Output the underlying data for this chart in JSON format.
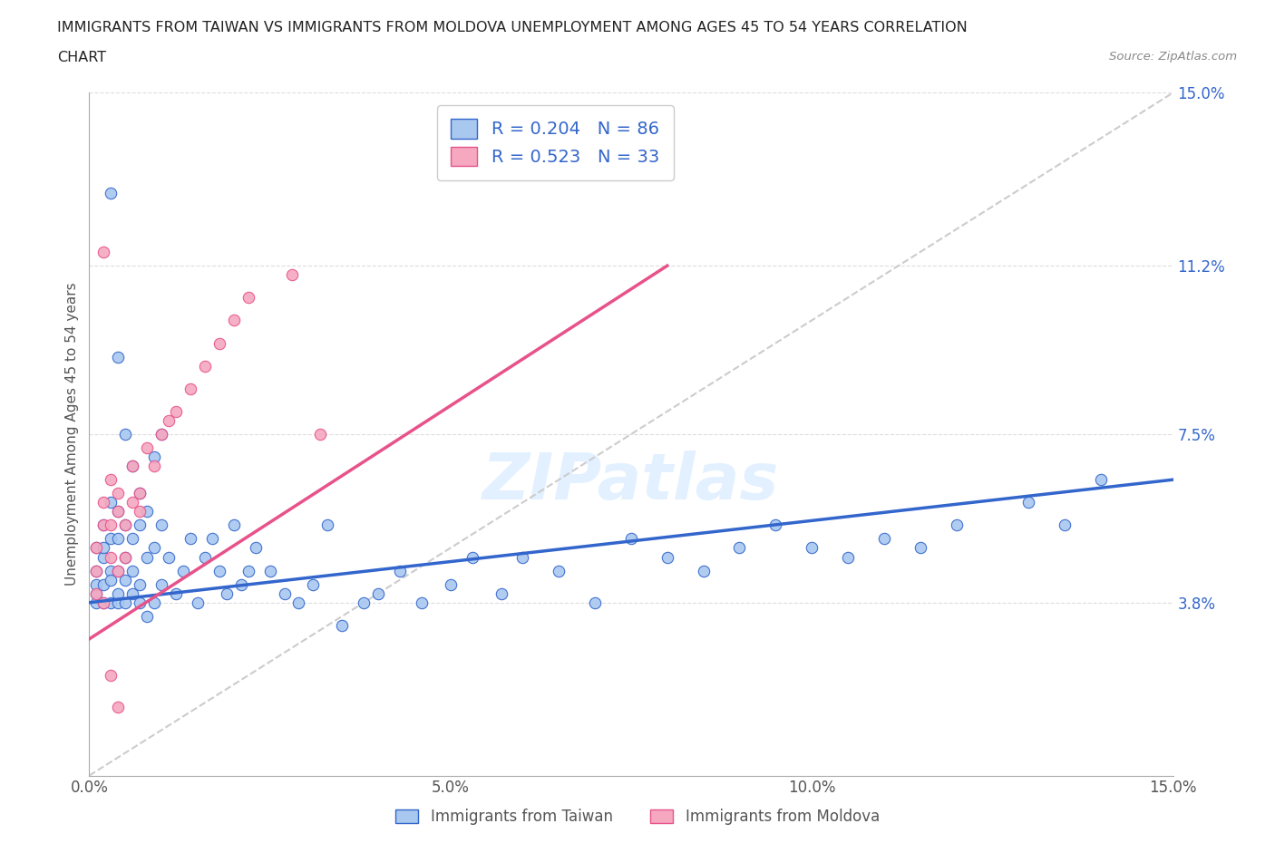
{
  "title_line1": "IMMIGRANTS FROM TAIWAN VS IMMIGRANTS FROM MOLDOVA UNEMPLOYMENT AMONG AGES 45 TO 54 YEARS CORRELATION",
  "title_line2": "CHART",
  "source": "Source: ZipAtlas.com",
  "xlabel_bottom": "Immigrants from Taiwan",
  "xlabel_bottom2": "Immigrants from Moldova",
  "ylabel": "Unemployment Among Ages 45 to 54 years",
  "xmin": 0.0,
  "xmax": 0.15,
  "ymin": 0.0,
  "ymax": 0.15,
  "ytick_vals": [
    0.038,
    0.075,
    0.112,
    0.15
  ],
  "ytick_labels": [
    "3.8%",
    "7.5%",
    "11.2%",
    "15.0%"
  ],
  "xtick_vals": [
    0.0,
    0.05,
    0.1,
    0.15
  ],
  "xtick_labels": [
    "0.0%",
    "5.0%",
    "10.0%",
    "15.0%"
  ],
  "taiwan_color": "#a8c8f0",
  "moldova_color": "#f5a8c0",
  "taiwan_line_color": "#3366cc",
  "moldova_line_color": "#e8528a",
  "trend_line_dashed_color": "#cccccc",
  "R_taiwan": 0.204,
  "N_taiwan": 86,
  "R_moldova": 0.523,
  "N_moldova": 33,
  "watermark": "ZIPatlas",
  "background_color": "#ffffff",
  "grid_color": "#dddddd",
  "taiwan_x": [
    0.001,
    0.001,
    0.001,
    0.001,
    0.001,
    0.002,
    0.002,
    0.002,
    0.002,
    0.002,
    0.003,
    0.003,
    0.003,
    0.003,
    0.003,
    0.004,
    0.004,
    0.004,
    0.004,
    0.004,
    0.005,
    0.005,
    0.005,
    0.005,
    0.006,
    0.006,
    0.006,
    0.007,
    0.007,
    0.007,
    0.008,
    0.008,
    0.009,
    0.009,
    0.01,
    0.01,
    0.011,
    0.012,
    0.013,
    0.014,
    0.015,
    0.016,
    0.017,
    0.018,
    0.019,
    0.02,
    0.021,
    0.022,
    0.023,
    0.025,
    0.027,
    0.029,
    0.031,
    0.033,
    0.035,
    0.038,
    0.04,
    0.043,
    0.046,
    0.05,
    0.053,
    0.057,
    0.06,
    0.065,
    0.07,
    0.075,
    0.08,
    0.085,
    0.09,
    0.095,
    0.1,
    0.105,
    0.11,
    0.115,
    0.12,
    0.13,
    0.135,
    0.14,
    0.003,
    0.004,
    0.005,
    0.006,
    0.007,
    0.008,
    0.009,
    0.01
  ],
  "taiwan_y": [
    0.04,
    0.045,
    0.05,
    0.038,
    0.042,
    0.048,
    0.055,
    0.038,
    0.042,
    0.05,
    0.06,
    0.045,
    0.038,
    0.052,
    0.043,
    0.058,
    0.045,
    0.038,
    0.052,
    0.04,
    0.055,
    0.048,
    0.038,
    0.043,
    0.052,
    0.04,
    0.045,
    0.055,
    0.042,
    0.038,
    0.048,
    0.035,
    0.05,
    0.038,
    0.042,
    0.055,
    0.048,
    0.04,
    0.045,
    0.052,
    0.038,
    0.048,
    0.052,
    0.045,
    0.04,
    0.055,
    0.042,
    0.045,
    0.05,
    0.045,
    0.04,
    0.038,
    0.042,
    0.055,
    0.033,
    0.038,
    0.04,
    0.045,
    0.038,
    0.042,
    0.048,
    0.04,
    0.048,
    0.045,
    0.038,
    0.052,
    0.048,
    0.045,
    0.05,
    0.055,
    0.05,
    0.048,
    0.052,
    0.05,
    0.055,
    0.06,
    0.055,
    0.065,
    0.128,
    0.092,
    0.075,
    0.068,
    0.062,
    0.058,
    0.07,
    0.075
  ],
  "moldova_x": [
    0.001,
    0.001,
    0.001,
    0.002,
    0.002,
    0.002,
    0.003,
    0.003,
    0.003,
    0.004,
    0.004,
    0.004,
    0.005,
    0.005,
    0.006,
    0.006,
    0.007,
    0.007,
    0.008,
    0.009,
    0.01,
    0.011,
    0.012,
    0.014,
    0.016,
    0.018,
    0.02,
    0.022,
    0.028,
    0.032,
    0.002,
    0.003,
    0.004
  ],
  "moldova_y": [
    0.04,
    0.045,
    0.05,
    0.055,
    0.038,
    0.06,
    0.048,
    0.055,
    0.065,
    0.045,
    0.058,
    0.062,
    0.055,
    0.048,
    0.06,
    0.068,
    0.062,
    0.058,
    0.072,
    0.068,
    0.075,
    0.078,
    0.08,
    0.085,
    0.09,
    0.095,
    0.1,
    0.105,
    0.11,
    0.075,
    0.115,
    0.022,
    0.015
  ],
  "taiwan_trend_x": [
    0.0,
    0.15
  ],
  "taiwan_trend_y": [
    0.038,
    0.065
  ],
  "moldova_trend_x": [
    0.0,
    0.08
  ],
  "moldova_trend_y": [
    0.03,
    0.112
  ]
}
